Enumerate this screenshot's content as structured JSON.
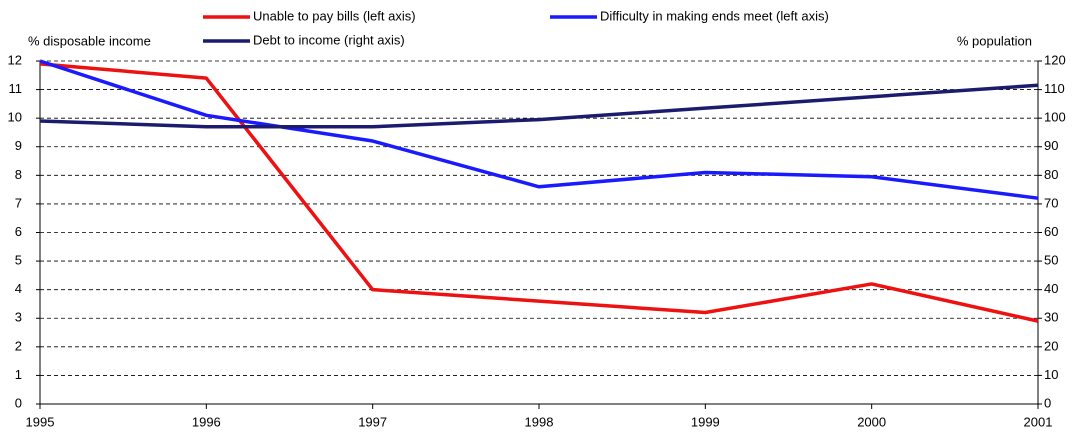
{
  "chart_data": {
    "type": "line",
    "ylabel": "% disposable income",
    "y2label": "% population",
    "x": [
      1995,
      1996,
      1997,
      1998,
      1999,
      2000,
      2001
    ],
    "xlim": [
      1995,
      2001
    ],
    "xticks": [
      1995,
      1996,
      1997,
      1998,
      1999,
      2000,
      2001
    ],
    "ylim": [
      0,
      12
    ],
    "yticks": [
      0,
      1,
      2,
      3,
      4,
      5,
      6,
      7,
      8,
      9,
      10,
      11,
      12
    ],
    "y2lim": [
      0,
      120
    ],
    "y2ticks": [
      0,
      10,
      20,
      30,
      40,
      50,
      60,
      70,
      80,
      90,
      100,
      110,
      120
    ],
    "grid": true,
    "legend": "top",
    "series": [
      {
        "name": "Unable to pay bills (left axis)",
        "color": "#ee1111",
        "values": [
          11.9,
          11.4,
          4.0,
          3.6,
          3.2,
          4.2,
          2.9
        ]
      },
      {
        "name": "Difficulty in making ends meet (left axis)",
        "color": "#1a1aff",
        "values": [
          12.0,
          10.1,
          9.2,
          7.6,
          8.1,
          7.95,
          7.2
        ]
      },
      {
        "name": "Debt to income (right axis)",
        "color": "#1c1c6e",
        "axis": "y2",
        "values": [
          99,
          97,
          97,
          99.5,
          103.5,
          107.5,
          111.5
        ]
      }
    ]
  }
}
